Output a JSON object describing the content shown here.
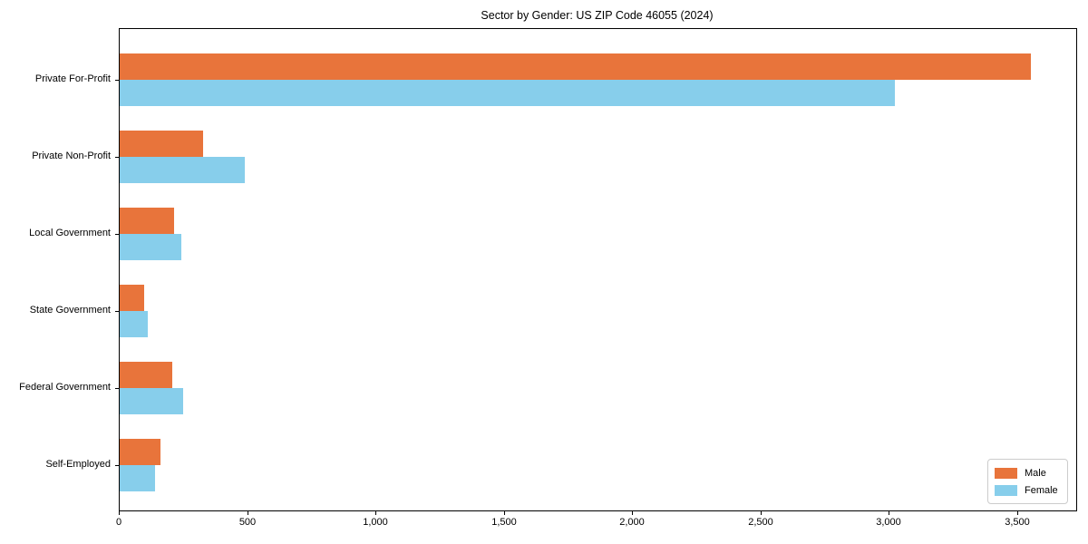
{
  "chart_data": {
    "type": "bar",
    "orientation": "horizontal",
    "title": "Sector by Gender: US ZIP Code 46055 (2024)",
    "categories": [
      "Private For-Profit",
      "Private Non-Profit",
      "Local Government",
      "State Government",
      "Federal Government",
      "Self-Employed"
    ],
    "series": [
      {
        "name": "Male",
        "color": "#e8743b",
        "values": [
          3550,
          325,
          212,
          96,
          205,
          160
        ]
      },
      {
        "name": "Female",
        "color": "#87ceeb",
        "values": [
          3020,
          487,
          240,
          110,
          248,
          138
        ]
      }
    ],
    "xlabel": "",
    "ylabel": "",
    "xlim": [
      0,
      3727
    ],
    "xticks": [
      0,
      500,
      1000,
      1500,
      2000,
      2500,
      3000,
      3500
    ],
    "xtick_labels": [
      "0",
      "500",
      "1,000",
      "1,500",
      "2,000",
      "2,500",
      "3,000",
      "3,500"
    ],
    "grid": false,
    "legend": {
      "position": "lower right",
      "entries": [
        "Male",
        "Female"
      ]
    }
  },
  "colors": {
    "axis": "#000000",
    "text": "#000000",
    "background": "#ffffff",
    "legend_border": "#cccccc"
  }
}
